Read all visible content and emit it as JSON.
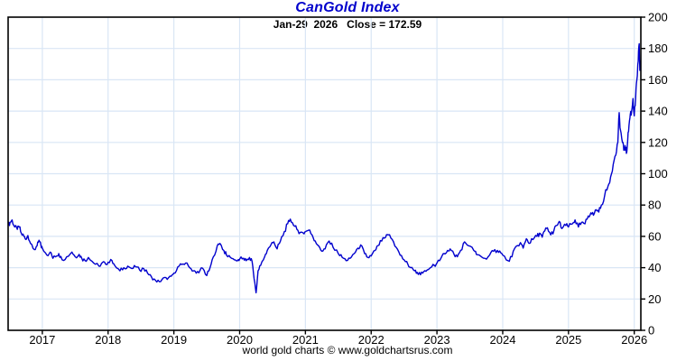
{
  "header": {
    "title": "CanGold Index",
    "subtitle": "Jan-29  2026   Close = 172.59"
  },
  "footer": {
    "credit": "world gold charts © www.goldchartsrus.com"
  },
  "colors": {
    "title": "#0000cc",
    "line": "#0000cd",
    "grid": "#d9e6f5",
    "axis": "#000000",
    "background": "#ffffff",
    "text": "#000000"
  },
  "chart_data": {
    "type": "line",
    "title": "CanGold Index",
    "subtitle": "Jan-29 2026 Close = 172.59",
    "last_date": "Jan-29 2026",
    "last_close": 172.59,
    "xlabel": "",
    "ylabel": "",
    "x_ticks": [
      2017,
      2018,
      2019,
      2020,
      2021,
      2022,
      2023,
      2024,
      2025,
      2026
    ],
    "y_ticks": [
      0,
      20,
      40,
      60,
      80,
      100,
      120,
      140,
      160,
      180,
      200
    ],
    "xlim": [
      2016.48,
      2026.1
    ],
    "ylim": [
      0,
      200
    ],
    "grid": true,
    "y_axis_side": "right",
    "legend": "none",
    "series": [
      {
        "name": "CanGold Index",
        "points": [
          [
            2016.48,
            67
          ],
          [
            2016.51,
            69
          ],
          [
            2016.54,
            70.5
          ],
          [
            2016.58,
            66
          ],
          [
            2016.62,
            64.5
          ],
          [
            2016.65,
            66
          ],
          [
            2016.68,
            62
          ],
          [
            2016.72,
            60
          ],
          [
            2016.75,
            58
          ],
          [
            2016.78,
            60.5
          ],
          [
            2016.82,
            55.5
          ],
          [
            2016.88,
            51.5
          ],
          [
            2016.92,
            54
          ],
          [
            2016.95,
            57.5
          ],
          [
            2016.98,
            54
          ],
          [
            2017.0,
            52.5
          ],
          [
            2017.07,
            48
          ],
          [
            2017.12,
            50
          ],
          [
            2017.16,
            46
          ],
          [
            2017.22,
            47.5
          ],
          [
            2017.25,
            49
          ],
          [
            2017.3,
            45
          ],
          [
            2017.37,
            47
          ],
          [
            2017.45,
            50
          ],
          [
            2017.5,
            47
          ],
          [
            2017.56,
            48.5
          ],
          [
            2017.6,
            46
          ],
          [
            2017.65,
            44.5
          ],
          [
            2017.7,
            46.5
          ],
          [
            2017.78,
            43
          ],
          [
            2017.86,
            41
          ],
          [
            2017.92,
            43.5
          ],
          [
            2017.96,
            42.5
          ],
          [
            2018.0,
            43.5
          ],
          [
            2018.06,
            44.5
          ],
          [
            2018.1,
            41.5
          ],
          [
            2018.18,
            38
          ],
          [
            2018.24,
            40
          ],
          [
            2018.3,
            41
          ],
          [
            2018.36,
            39.5
          ],
          [
            2018.42,
            40.5
          ],
          [
            2018.48,
            38.5
          ],
          [
            2018.54,
            39.5
          ],
          [
            2018.6,
            36.5
          ],
          [
            2018.66,
            34
          ],
          [
            2018.72,
            32
          ],
          [
            2018.78,
            31
          ],
          [
            2018.84,
            33.5
          ],
          [
            2018.9,
            32.5
          ],
          [
            2018.96,
            34.5
          ],
          [
            2019.0,
            36.5
          ],
          [
            2019.06,
            40.5
          ],
          [
            2019.12,
            42
          ],
          [
            2019.18,
            43
          ],
          [
            2019.24,
            40
          ],
          [
            2019.3,
            38
          ],
          [
            2019.34,
            36.5
          ],
          [
            2019.4,
            38.5
          ],
          [
            2019.44,
            39.5
          ],
          [
            2019.5,
            35
          ],
          [
            2019.55,
            40
          ],
          [
            2019.6,
            47
          ],
          [
            2019.66,
            54
          ],
          [
            2019.7,
            55.5
          ],
          [
            2019.76,
            51
          ],
          [
            2019.8,
            48
          ],
          [
            2019.86,
            46.5
          ],
          [
            2019.92,
            45
          ],
          [
            2019.97,
            44.5
          ],
          [
            2020.0,
            45.5
          ],
          [
            2020.06,
            46
          ],
          [
            2020.1,
            44.5
          ],
          [
            2020.15,
            46.5
          ],
          [
            2020.19,
            44
          ],
          [
            2020.22,
            33
          ],
          [
            2020.25,
            24
          ],
          [
            2020.28,
            38
          ],
          [
            2020.32,
            41.5
          ],
          [
            2020.38,
            47
          ],
          [
            2020.42,
            51
          ],
          [
            2020.48,
            55
          ],
          [
            2020.52,
            56.5
          ],
          [
            2020.57,
            52
          ],
          [
            2020.62,
            57
          ],
          [
            2020.68,
            63
          ],
          [
            2020.73,
            68
          ],
          [
            2020.77,
            71
          ],
          [
            2020.82,
            67
          ],
          [
            2020.87,
            64.5
          ],
          [
            2020.92,
            62.5
          ],
          [
            2020.97,
            62
          ],
          [
            2021.0,
            63
          ],
          [
            2021.05,
            64
          ],
          [
            2021.1,
            61
          ],
          [
            2021.15,
            57
          ],
          [
            2021.2,
            54
          ],
          [
            2021.25,
            50.5
          ],
          [
            2021.3,
            52
          ],
          [
            2021.36,
            57
          ],
          [
            2021.42,
            53
          ],
          [
            2021.5,
            49
          ],
          [
            2021.56,
            46.5
          ],
          [
            2021.62,
            44.5
          ],
          [
            2021.68,
            46
          ],
          [
            2021.74,
            49
          ],
          [
            2021.8,
            52.5
          ],
          [
            2021.84,
            54.5
          ],
          [
            2021.9,
            49
          ],
          [
            2021.95,
            46.5
          ],
          [
            2022.0,
            47.5
          ],
          [
            2022.06,
            51
          ],
          [
            2022.1,
            54
          ],
          [
            2022.16,
            57
          ],
          [
            2022.22,
            59.5
          ],
          [
            2022.26,
            61
          ],
          [
            2022.32,
            58
          ],
          [
            2022.38,
            53
          ],
          [
            2022.44,
            48
          ],
          [
            2022.5,
            45
          ],
          [
            2022.56,
            42
          ],
          [
            2022.6,
            40
          ],
          [
            2022.66,
            38
          ],
          [
            2022.7,
            37
          ],
          [
            2022.75,
            35.5
          ],
          [
            2022.8,
            37.5
          ],
          [
            2022.85,
            38.5
          ],
          [
            2022.9,
            40
          ],
          [
            2022.96,
            41.5
          ],
          [
            2023.0,
            43
          ],
          [
            2023.06,
            46
          ],
          [
            2023.11,
            49
          ],
          [
            2023.16,
            51
          ],
          [
            2023.2,
            52
          ],
          [
            2023.26,
            48.5
          ],
          [
            2023.31,
            47
          ],
          [
            2023.36,
            51
          ],
          [
            2023.42,
            56.5
          ],
          [
            2023.48,
            54
          ],
          [
            2023.56,
            51
          ],
          [
            2023.6,
            48.5
          ],
          [
            2023.66,
            47.5
          ],
          [
            2023.73,
            46
          ],
          [
            2023.8,
            48
          ],
          [
            2023.86,
            50.5
          ],
          [
            2023.92,
            51
          ],
          [
            2023.97,
            49.5
          ],
          [
            2024.0,
            48
          ],
          [
            2024.08,
            44.5
          ],
          [
            2024.14,
            47
          ],
          [
            2024.2,
            53.5
          ],
          [
            2024.27,
            56
          ],
          [
            2024.31,
            52.5
          ],
          [
            2024.36,
            58.5
          ],
          [
            2024.4,
            55.5
          ],
          [
            2024.46,
            58
          ],
          [
            2024.52,
            60
          ],
          [
            2024.56,
            62
          ],
          [
            2024.6,
            59.5
          ],
          [
            2024.64,
            63.5
          ],
          [
            2024.68,
            65.5
          ],
          [
            2024.73,
            61
          ],
          [
            2024.78,
            64
          ],
          [
            2024.82,
            67
          ],
          [
            2024.86,
            69.5
          ],
          [
            2024.9,
            65
          ],
          [
            2024.96,
            67
          ],
          [
            2025.0,
            66
          ],
          [
            2025.06,
            68
          ],
          [
            2025.1,
            70.5
          ],
          [
            2025.15,
            66
          ],
          [
            2025.2,
            69
          ],
          [
            2025.25,
            68
          ],
          [
            2025.3,
            73
          ],
          [
            2025.34,
            75
          ],
          [
            2025.38,
            73.5
          ],
          [
            2025.42,
            77
          ],
          [
            2025.46,
            75.5
          ],
          [
            2025.5,
            80
          ],
          [
            2025.55,
            86
          ],
          [
            2025.6,
            92
          ],
          [
            2025.64,
            98
          ],
          [
            2025.68,
            106
          ],
          [
            2025.72,
            112
          ],
          [
            2025.75,
            120
          ],
          [
            2025.77,
            139
          ],
          [
            2025.79,
            128
          ],
          [
            2025.82,
            120
          ],
          [
            2025.84,
            115
          ],
          [
            2025.86,
            118
          ],
          [
            2025.88,
            113
          ],
          [
            2025.9,
            121
          ],
          [
            2025.92,
            131
          ],
          [
            2025.94,
            138
          ],
          [
            2025.96,
            140
          ],
          [
            2025.98,
            148
          ],
          [
            2026.0,
            137
          ],
          [
            2026.02,
            148
          ],
          [
            2026.04,
            160
          ],
          [
            2026.06,
            172
          ],
          [
            2026.075,
            183
          ],
          [
            2026.085,
            166
          ],
          [
            2026.09,
            172.59
          ]
        ]
      }
    ]
  }
}
